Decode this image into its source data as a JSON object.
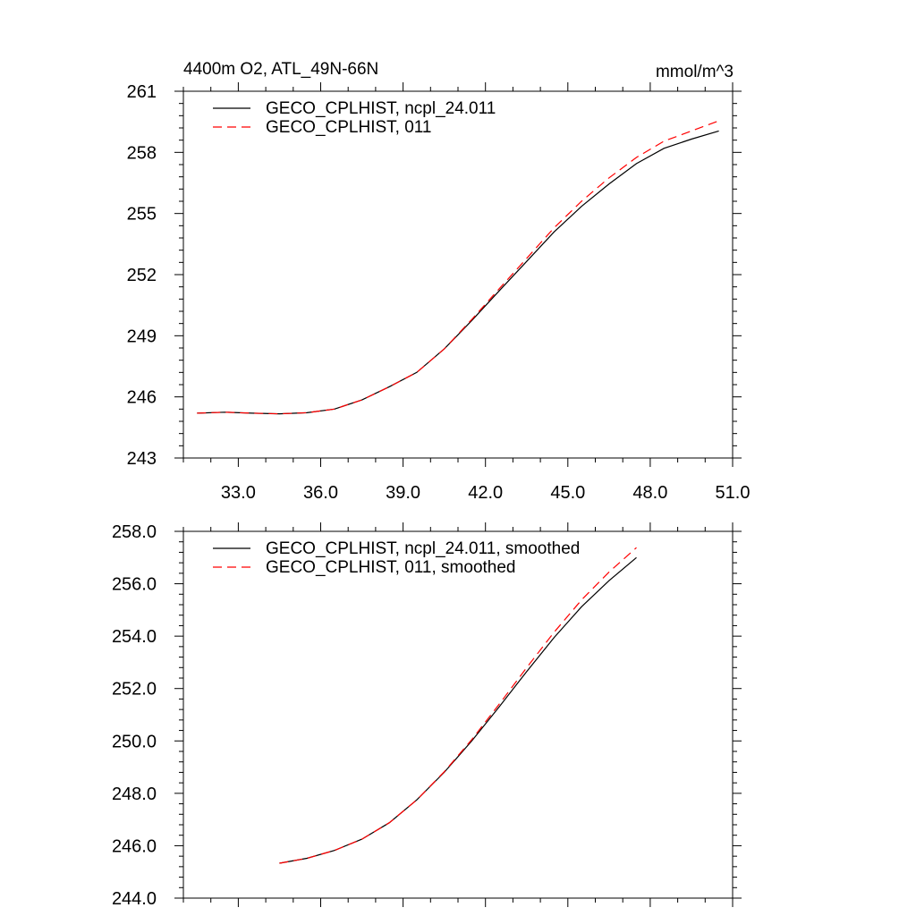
{
  "chart_data": [
    {
      "type": "line",
      "title_left": "4400m O2, ATL_49N-66N",
      "title_right": "mmol/m^3",
      "xlim": [
        31.0,
        51.0
      ],
      "ylim": [
        243,
        261
      ],
      "xticks": [
        33.0,
        36.0,
        39.0,
        42.0,
        45.0,
        48.0,
        51.0
      ],
      "xtick_labels": [
        "33.0",
        "36.0",
        "39.0",
        "42.0",
        "45.0",
        "48.0",
        "51.0"
      ],
      "yticks": [
        243,
        246,
        249,
        252,
        255,
        258,
        261
      ],
      "ytick_labels": [
        "243",
        "246",
        "249",
        "252",
        "255",
        "258",
        "261"
      ],
      "legend_position": "top-left",
      "series": [
        {
          "name": "GECO_CPLHIST, ncpl_24.011",
          "color": "#000000",
          "style": "solid",
          "x": [
            31.5,
            32.5,
            33.5,
            34.5,
            35.5,
            36.5,
            37.5,
            38.5,
            39.5,
            40.5,
            41.5,
            42.5,
            43.5,
            44.5,
            45.5,
            46.5,
            47.5,
            48.5,
            49.5,
            50.5
          ],
          "y": [
            245.2,
            245.25,
            245.2,
            245.17,
            245.22,
            245.4,
            245.85,
            246.5,
            247.2,
            248.35,
            249.75,
            251.2,
            252.65,
            254.1,
            255.35,
            256.45,
            257.45,
            258.2,
            258.65,
            259.05
          ]
        },
        {
          "name": "GECO_CPLHIST, 011",
          "color": "#ff0000",
          "style": "dashed",
          "x": [
            31.5,
            32.5,
            33.5,
            34.5,
            35.5,
            36.5,
            37.5,
            38.5,
            39.5,
            40.5,
            41.5,
            42.5,
            43.5,
            44.5,
            45.5,
            46.5,
            47.5,
            48.5,
            49.5,
            50.5
          ],
          "y": [
            245.2,
            245.25,
            245.2,
            245.17,
            245.22,
            245.4,
            245.85,
            246.5,
            247.2,
            248.35,
            249.8,
            251.3,
            252.8,
            254.3,
            255.6,
            256.75,
            257.75,
            258.55,
            259.05,
            259.55
          ]
        }
      ]
    },
    {
      "type": "line",
      "xlim": [
        31.0,
        51.0
      ],
      "ylim": [
        244.0,
        258.0
      ],
      "xticks": [
        33.0,
        36.0,
        39.0,
        42.0,
        45.0,
        48.0,
        51.0
      ],
      "yticks": [
        244.0,
        246.0,
        248.0,
        250.0,
        252.0,
        254.0,
        256.0,
        258.0
      ],
      "ytick_labels": [
        "244.0",
        "246.0",
        "248.0",
        "250.0",
        "252.0",
        "254.0",
        "256.0",
        "258.0"
      ],
      "legend_position": "top-left",
      "series": [
        {
          "name": "GECO_CPLHIST, ncpl_24.011, smoothed",
          "color": "#000000",
          "style": "solid",
          "x": [
            34.5,
            35.5,
            36.5,
            37.5,
            38.5,
            39.5,
            40.5,
            41.5,
            42.5,
            43.5,
            44.5,
            45.5,
            46.5,
            47.5
          ],
          "y": [
            245.33,
            245.52,
            245.82,
            246.25,
            246.88,
            247.75,
            248.8,
            250.0,
            251.3,
            252.65,
            253.95,
            255.12,
            256.12,
            257.0
          ]
        },
        {
          "name": "GECO_CPLHIST, 011, smoothed",
          "color": "#ff0000",
          "style": "dashed",
          "x": [
            34.5,
            35.5,
            36.5,
            37.5,
            38.5,
            39.5,
            40.5,
            41.5,
            42.5,
            43.5,
            44.5,
            45.5,
            46.5,
            47.5
          ],
          "y": [
            245.33,
            245.52,
            245.82,
            246.25,
            246.88,
            247.75,
            248.82,
            250.05,
            251.4,
            252.8,
            254.15,
            255.38,
            256.45,
            257.38
          ]
        }
      ]
    }
  ]
}
